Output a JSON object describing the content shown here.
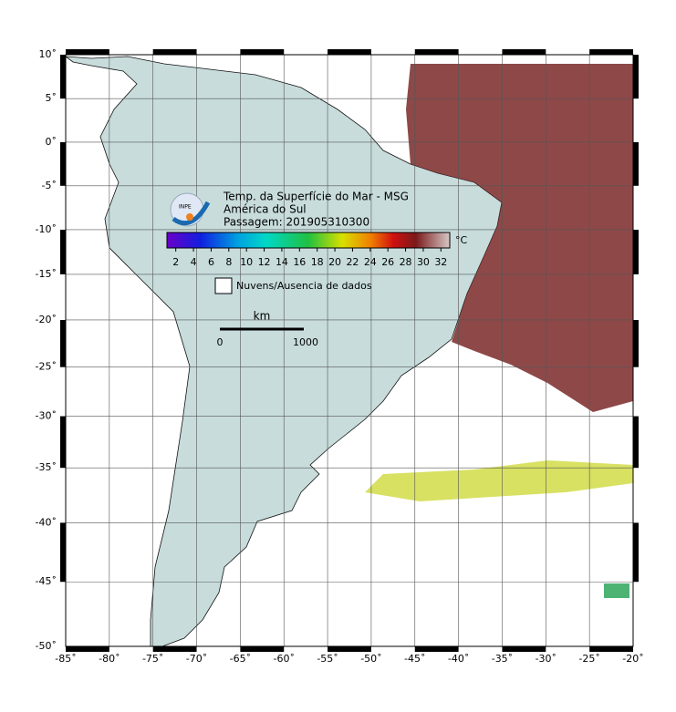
{
  "map": {
    "projection": "mercator",
    "xlim": [
      -85,
      -20
    ],
    "ylim": [
      -50,
      10
    ],
    "xticks": [
      {
        "value": -85,
        "label": "-85˚"
      },
      {
        "value": -80,
        "label": "-80˚"
      },
      {
        "value": -75,
        "label": "-75˚"
      },
      {
        "value": -70,
        "label": "-70˚"
      },
      {
        "value": -65,
        "label": "-65˚"
      },
      {
        "value": -60,
        "label": "-60˚"
      },
      {
        "value": -55,
        "label": "-55˚"
      },
      {
        "value": -50,
        "label": "-50˚"
      },
      {
        "value": -45,
        "label": "-45˚"
      },
      {
        "value": -40,
        "label": "-40˚"
      },
      {
        "value": -35,
        "label": "-35˚"
      },
      {
        "value": -30,
        "label": "-30˚"
      },
      {
        "value": -25,
        "label": "-25˚"
      },
      {
        "value": -20,
        "label": "-20˚"
      }
    ],
    "yticks": [
      {
        "value": 10,
        "label": "10˚"
      },
      {
        "value": 5,
        "label": "5˚"
      },
      {
        "value": 0,
        "label": "0˚"
      },
      {
        "value": -5,
        "label": "-5˚"
      },
      {
        "value": -10,
        "label": "-10˚"
      },
      {
        "value": -15,
        "label": "-15˚"
      },
      {
        "value": -20,
        "label": "-20˚"
      },
      {
        "value": -25,
        "label": "-25˚"
      },
      {
        "value": -30,
        "label": "-30˚"
      },
      {
        "value": -35,
        "label": "-35˚"
      },
      {
        "value": -40,
        "label": "-40˚"
      },
      {
        "value": -45,
        "label": "-45˚"
      },
      {
        "value": -50,
        "label": "-50˚"
      }
    ],
    "grid": true,
    "logo": "INPE",
    "title_lines": [
      "Temp. da Superfície do Mar - MSG",
      "América do Sul",
      "Passagem: 201905310300"
    ],
    "colorbar": {
      "ticks": [
        2,
        4,
        6,
        8,
        10,
        12,
        14,
        16,
        18,
        20,
        22,
        24,
        26,
        28,
        30,
        32
      ],
      "unit": "°C"
    },
    "legend": "Nuvens/Ausencia de dados",
    "scale_bar": {
      "unit": "km",
      "start": "0",
      "end": "1000"
    }
  }
}
